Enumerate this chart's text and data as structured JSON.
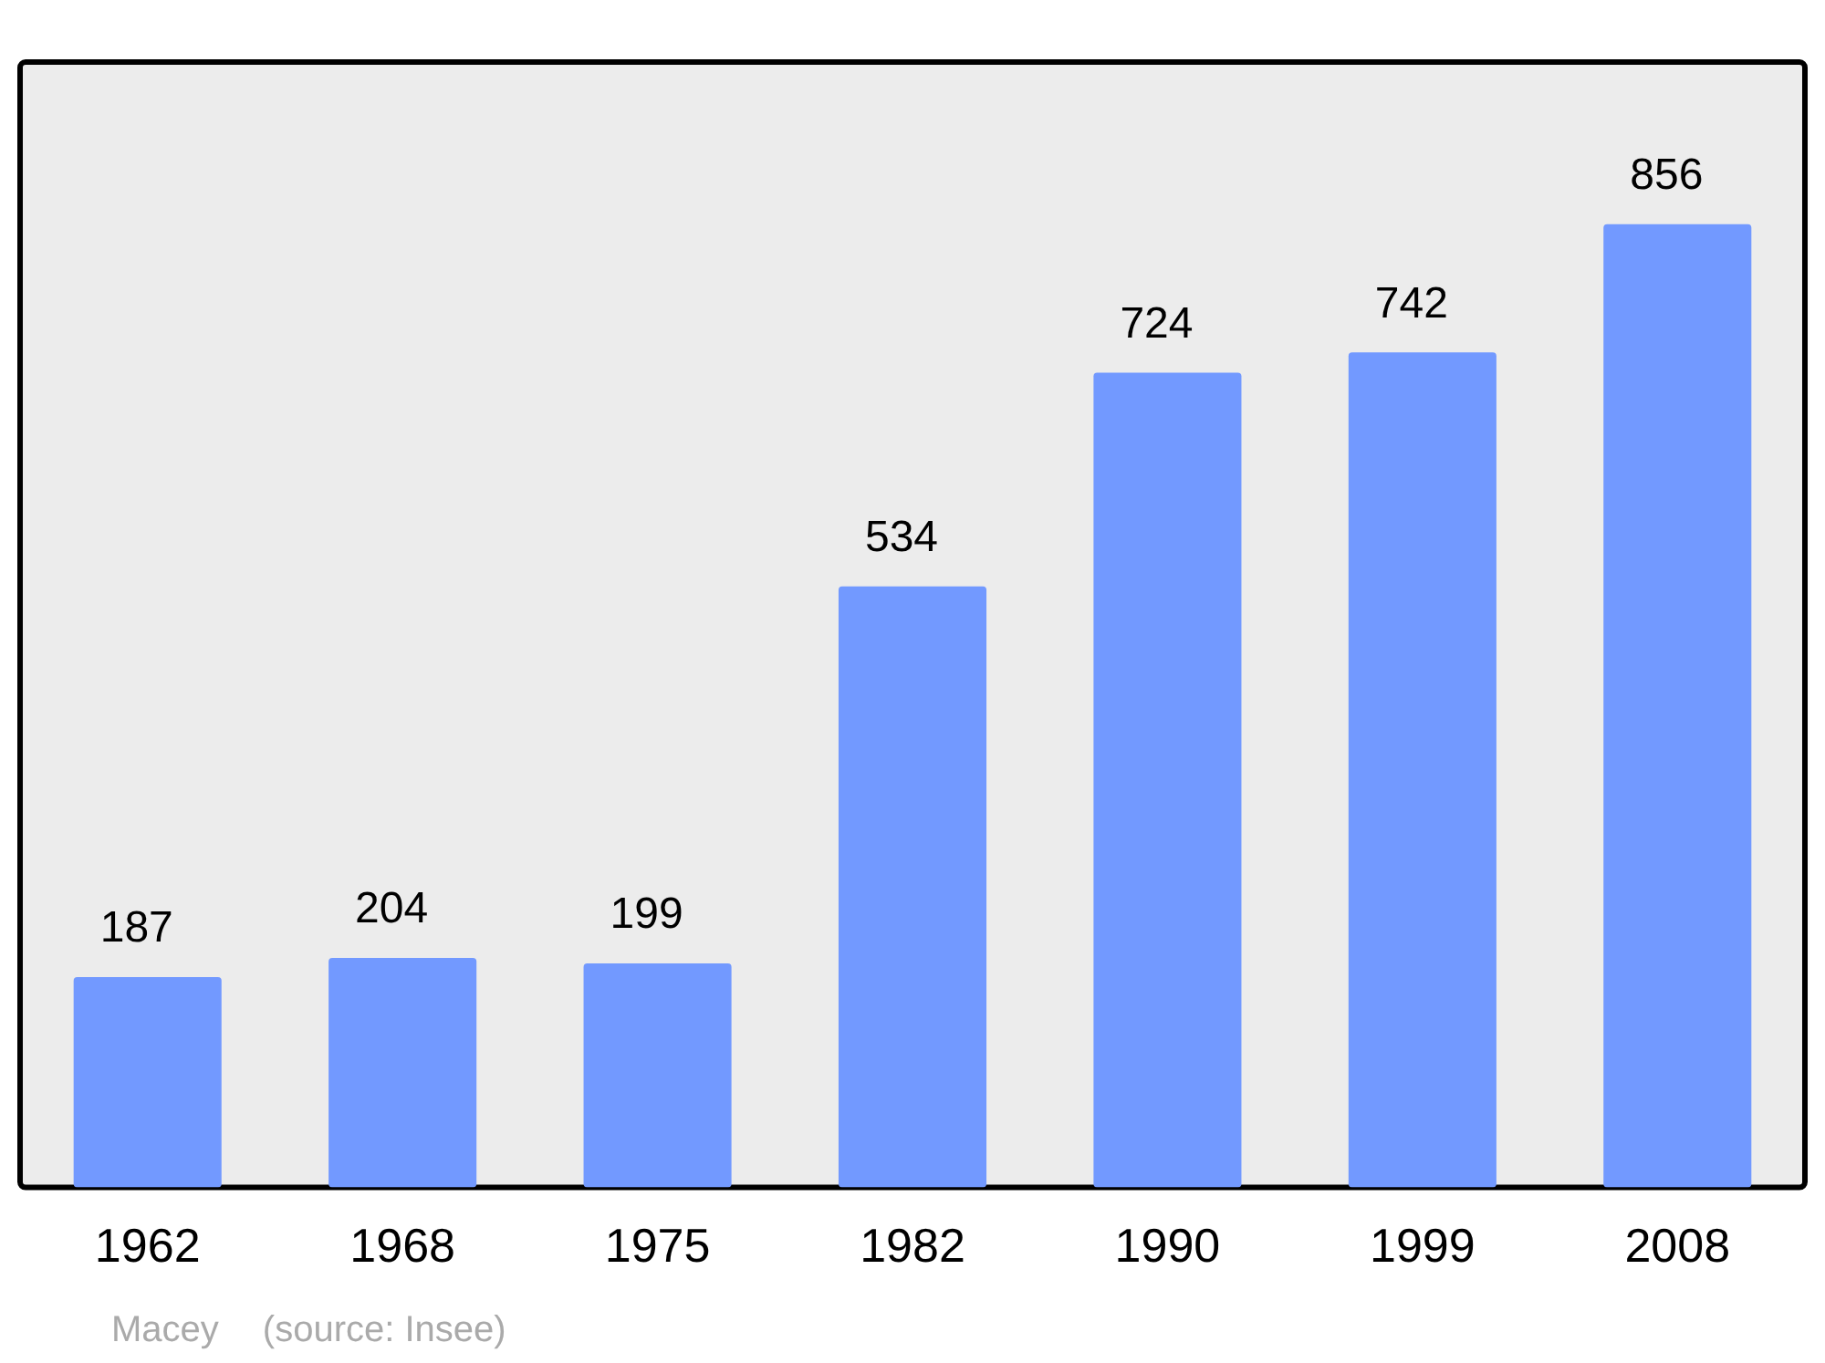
{
  "chart_data": {
    "type": "bar",
    "categories": [
      "1962",
      "1968",
      "1975",
      "1982",
      "1990",
      "1999",
      "2008"
    ],
    "values": [
      187,
      204,
      199,
      534,
      724,
      742,
      856
    ],
    "color": "#7299ff",
    "data_labels": true,
    "annotations": [
      "Macey",
      "(source: Insee)"
    ]
  }
}
